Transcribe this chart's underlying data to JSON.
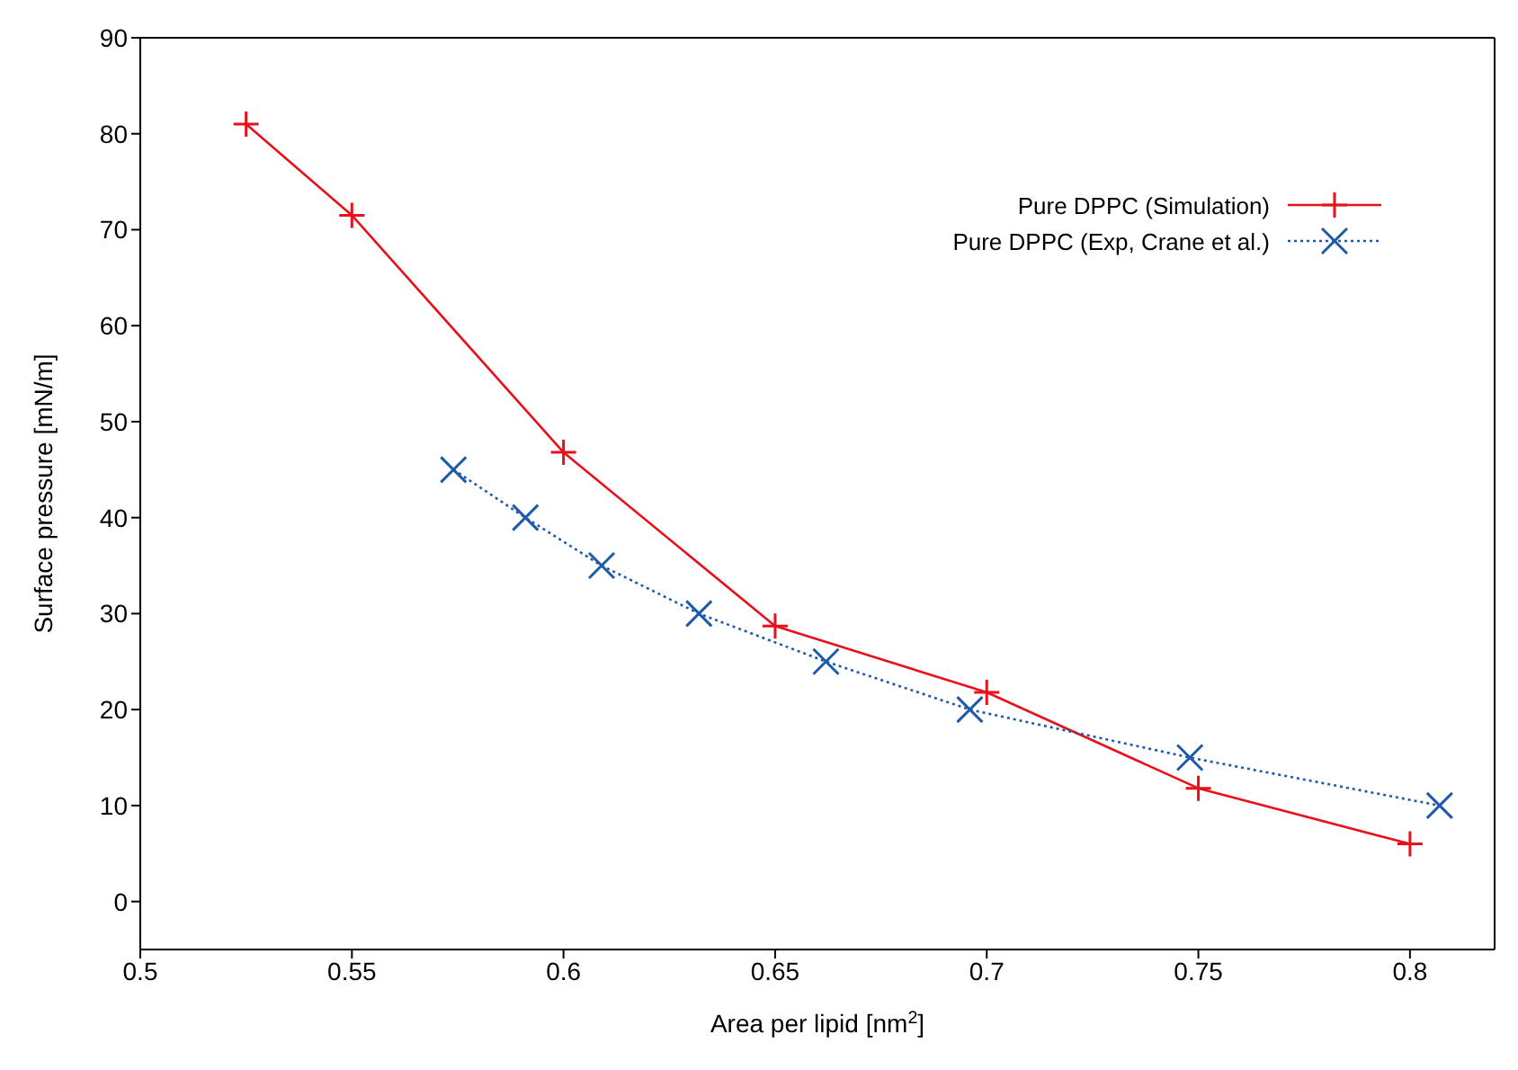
{
  "chart_data": {
    "type": "line",
    "xlabel": "Area per lipid [nm$^{2}$]",
    "ylabel": "Surface pressure [mN/m]",
    "xlim": [
      0.5,
      0.82
    ],
    "xticks": [
      0.5,
      0.55,
      0.6,
      0.65,
      0.7,
      0.75,
      0.8
    ],
    "ylim": [
      -5,
      90
    ],
    "yticks": [
      0,
      10,
      20,
      30,
      40,
      50,
      60,
      70,
      80,
      90
    ],
    "grid": false,
    "legend": "top right",
    "series": [
      {
        "name": "Pure DPPC (Simulation)",
        "color": "#e8101a",
        "marker": "plus",
        "line_style": "solid",
        "x": [
          0.525,
          0.55,
          0.6,
          0.65,
          0.7,
          0.75,
          0.8
        ],
        "values": [
          81,
          71.5,
          46.8,
          28.7,
          21.8,
          11.8,
          6
        ]
      },
      {
        "name": "Pure DPPC (Exp, Crane et al.)",
        "color": "#1f5aa8",
        "marker": "cross",
        "line_style": "dotted",
        "x": [
          0.574,
          0.591,
          0.609,
          0.632,
          0.662,
          0.696,
          0.748,
          0.807
        ],
        "values": [
          45,
          40,
          35,
          30,
          25,
          20,
          15,
          10
        ]
      }
    ]
  }
}
